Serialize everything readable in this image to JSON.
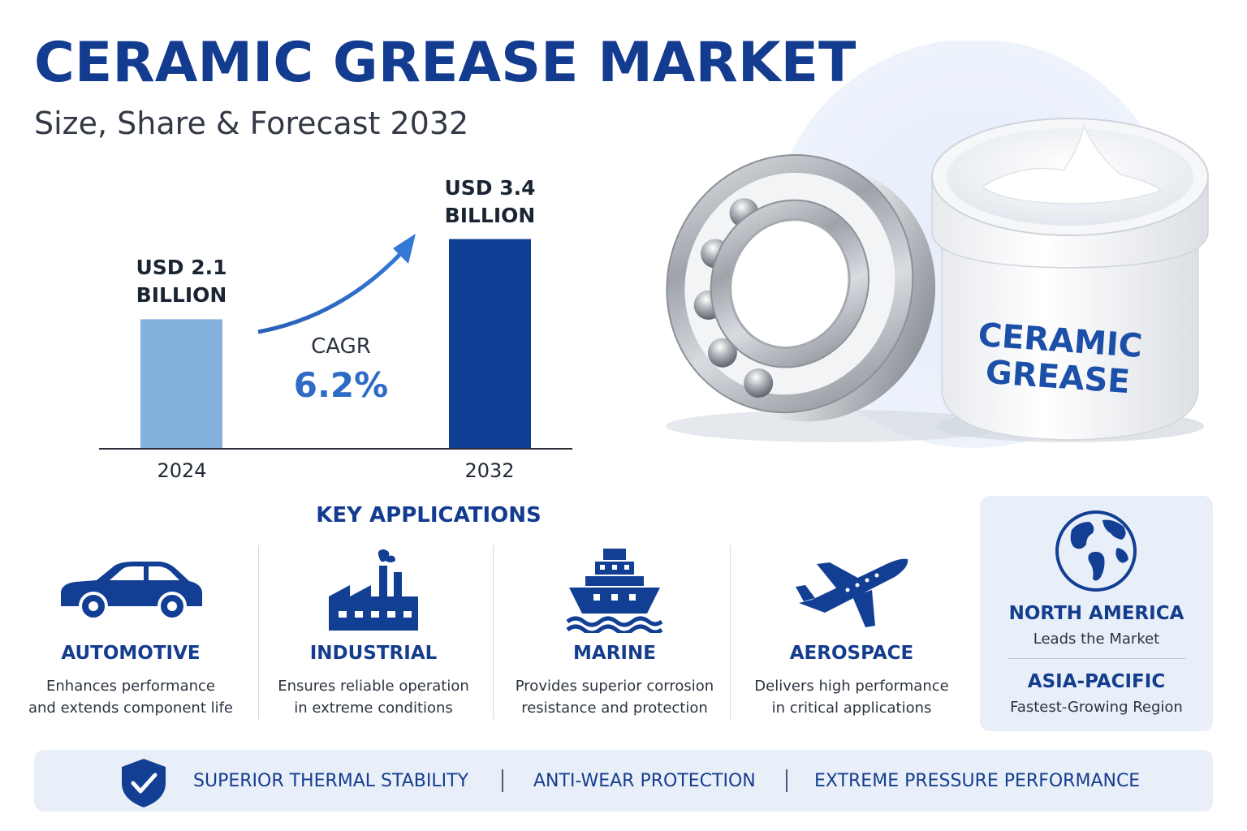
{
  "header": {
    "title": "CERAMIC GREASE MARKET",
    "subtitle": "Size, Share & Forecast 2032"
  },
  "chart_data": {
    "type": "bar",
    "categories": [
      "2024",
      "2032"
    ],
    "values": [
      2.1,
      3.4
    ],
    "value_labels": [
      [
        "USD 2.1",
        "BILLION"
      ],
      [
        "USD 3.4",
        "BILLION"
      ]
    ],
    "bar_colors": [
      "#85b1df",
      "#0e3f94"
    ],
    "unit": "USD Billion",
    "cagr_label": "CAGR",
    "cagr_value": "6.2%",
    "grid": false,
    "legend": "none"
  },
  "product": {
    "jar_label_line1": "CERAMIC",
    "jar_label_line2": "GREASE"
  },
  "applications": {
    "title": "KEY APPLICATIONS",
    "items": [
      {
        "icon": "car-icon",
        "name": "AUTOMOTIVE",
        "desc1": "Enhances performance",
        "desc2": "and extends component life"
      },
      {
        "icon": "factory-icon",
        "name": "INDUSTRIAL",
        "desc1": "Ensures reliable operation",
        "desc2": "in extreme conditions"
      },
      {
        "icon": "ship-icon",
        "name": "MARINE",
        "desc1": "Provides superior corrosion",
        "desc2": "resistance and protection"
      },
      {
        "icon": "airplane-icon",
        "name": "AEROSPACE",
        "desc1": "Delivers high performance",
        "desc2": "in critical applications"
      }
    ]
  },
  "regions": {
    "icon": "globe-icon",
    "primary_name": "NORTH AMERICA",
    "primary_desc": "Leads the Market",
    "secondary_name": "ASIA-PACIFIC",
    "secondary_desc": "Fastest-Growing Region"
  },
  "features": {
    "icon": "shield-check-icon",
    "items": [
      "SUPERIOR THERMAL STABILITY",
      "ANTI-WEAR PROTECTION",
      "EXTREME PRESSURE PERFORMANCE"
    ]
  },
  "colors": {
    "brand": "#133b8f",
    "accent": "#2d6bc4",
    "panel": "#e9eff9"
  }
}
